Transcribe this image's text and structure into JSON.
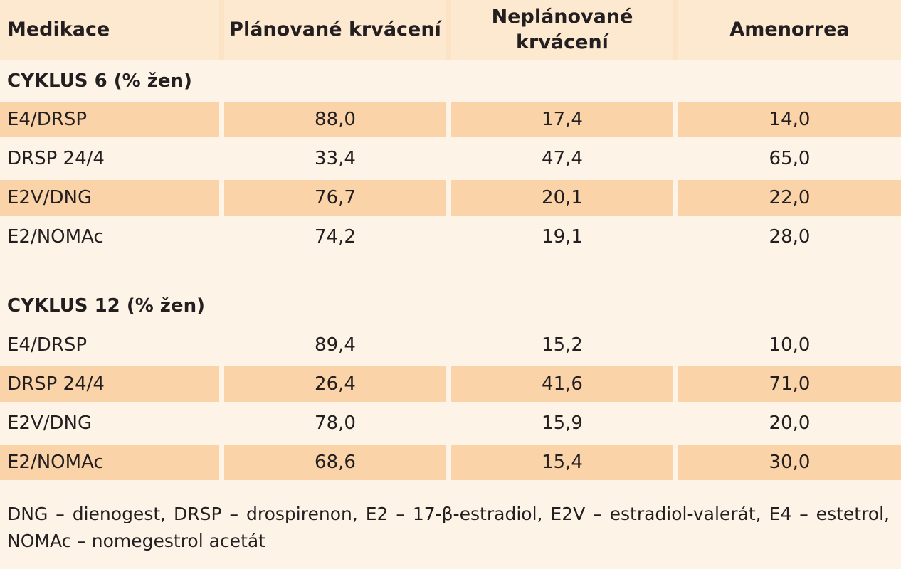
{
  "header": {
    "medikace": "Medikace",
    "planovane": "Plánované krvácení",
    "neplanovane_line1": "Neplánované",
    "neplanovane_line2": "krvácení",
    "amenorrea": "Amenorrea"
  },
  "sections": [
    {
      "title": "CYKLUS 6 (% žen)",
      "rows": [
        {
          "name": "E4/DRSP",
          "planovane": "88,0",
          "neplanovane": "17,4",
          "amenorrea": "14,0"
        },
        {
          "name": "DRSP 24/4",
          "planovane": "33,4",
          "neplanovane": "47,4",
          "amenorrea": "65,0"
        },
        {
          "name": "E2V/DNG",
          "planovane": "76,7",
          "neplanovane": "20,1",
          "amenorrea": "22,0"
        },
        {
          "name": "E2/NOMAc",
          "planovane": "74,2",
          "neplanovane": "19,1",
          "amenorrea": "28,0"
        }
      ]
    },
    {
      "title": "CYKLUS 12 (% žen)",
      "rows": [
        {
          "name": "E4/DRSP",
          "planovane": "89,4",
          "neplanovane": "15,2",
          "amenorrea": "10,0"
        },
        {
          "name": "DRSP 24/4",
          "planovane": "26,4",
          "neplanovane": "41,6",
          "amenorrea": "71,0"
        },
        {
          "name": "E2V/DNG",
          "planovane": "78,0",
          "neplanovane": "15,9",
          "amenorrea": "20,0"
        },
        {
          "name": "E2/NOMAc",
          "planovane": "68,6",
          "neplanovane": "15,4",
          "amenorrea": "30,0"
        }
      ]
    }
  ],
  "footnote": "DNG – dienogest, DRSP – drospirenon, E2 – 17-β-estradiol, E2V – estradiol-valerát, E4 – estetrol, NOMAc – nomegestrol acetát",
  "colors": {
    "background": "#fdf3e6",
    "header": "#fde8d0",
    "shaded_row": "#fbd3a8"
  }
}
